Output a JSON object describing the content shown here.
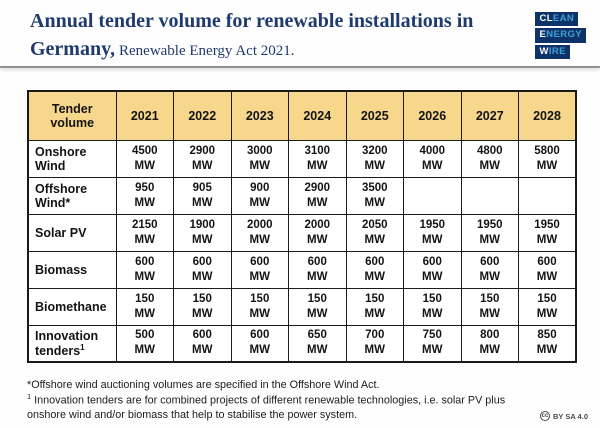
{
  "title": {
    "line1": "Annual tender volume for renewable installations in",
    "line2_bold": "Germany,",
    "line2_regular": "Renewable Energy Act 2021."
  },
  "logo": {
    "name": "Clean Energy Wire",
    "lines": [
      {
        "highlight": "CL",
        "rest": "EAN"
      },
      {
        "highlight": "E",
        "rest": "NERGY"
      },
      {
        "highlight": "W",
        "rest": "IRE"
      }
    ]
  },
  "chart_data": {
    "type": "table",
    "title": "Annual tender volume for renewable installations in Germany, Renewable Energy Act 2021.",
    "unit": "MW",
    "columns": [
      "Tender volume",
      "2021",
      "2022",
      "2023",
      "2024",
      "2025",
      "2026",
      "2027",
      "2028"
    ],
    "rows": [
      {
        "label": "Onshore Wind",
        "label_sup": "",
        "values": [
          "4500",
          "2900",
          "3000",
          "3100",
          "3200",
          "4000",
          "4800",
          "5800"
        ]
      },
      {
        "label": "Offshore Wind*",
        "label_sup": "",
        "values": [
          "950",
          "905",
          "900",
          "2900",
          "3500",
          "",
          "",
          ""
        ]
      },
      {
        "label": "Solar PV",
        "label_sup": "",
        "values": [
          "2150",
          "1900",
          "2000",
          "2000",
          "2050",
          "1950",
          "1950",
          "1950"
        ]
      },
      {
        "label": "Biomass",
        "label_sup": "",
        "values": [
          "600",
          "600",
          "600",
          "600",
          "600",
          "600",
          "600",
          "600"
        ]
      },
      {
        "label": "Biomethane",
        "label_sup": "",
        "values": [
          "150",
          "150",
          "150",
          "150",
          "150",
          "150",
          "150",
          "150"
        ]
      },
      {
        "label": "Innovation tenders",
        "label_sup": "1",
        "values": [
          "500",
          "600",
          "600",
          "650",
          "700",
          "750",
          "800",
          "850"
        ]
      }
    ]
  },
  "footnotes": [
    {
      "sup": "",
      "text": "*Offshore wind auctioning volumes are specified in the Offshore Wind Act."
    },
    {
      "sup": "1",
      "text": "Innovation tenders are for combined projects of different renewable technologies, i.e. solar PV plus"
    },
    {
      "sup": "",
      "text": "onshore wind and/or biomass that help to stabilise the power system."
    }
  ],
  "license": {
    "icon_glyph": "cc",
    "text": "BY SA 4.0"
  },
  "colors": {
    "title_navy": "#1f3a6d",
    "header_yellow": "#f7d78c",
    "border_black": "#1a1a1a",
    "logo_navy": "#0e3368",
    "logo_lightblue": "#3fa0d8"
  }
}
